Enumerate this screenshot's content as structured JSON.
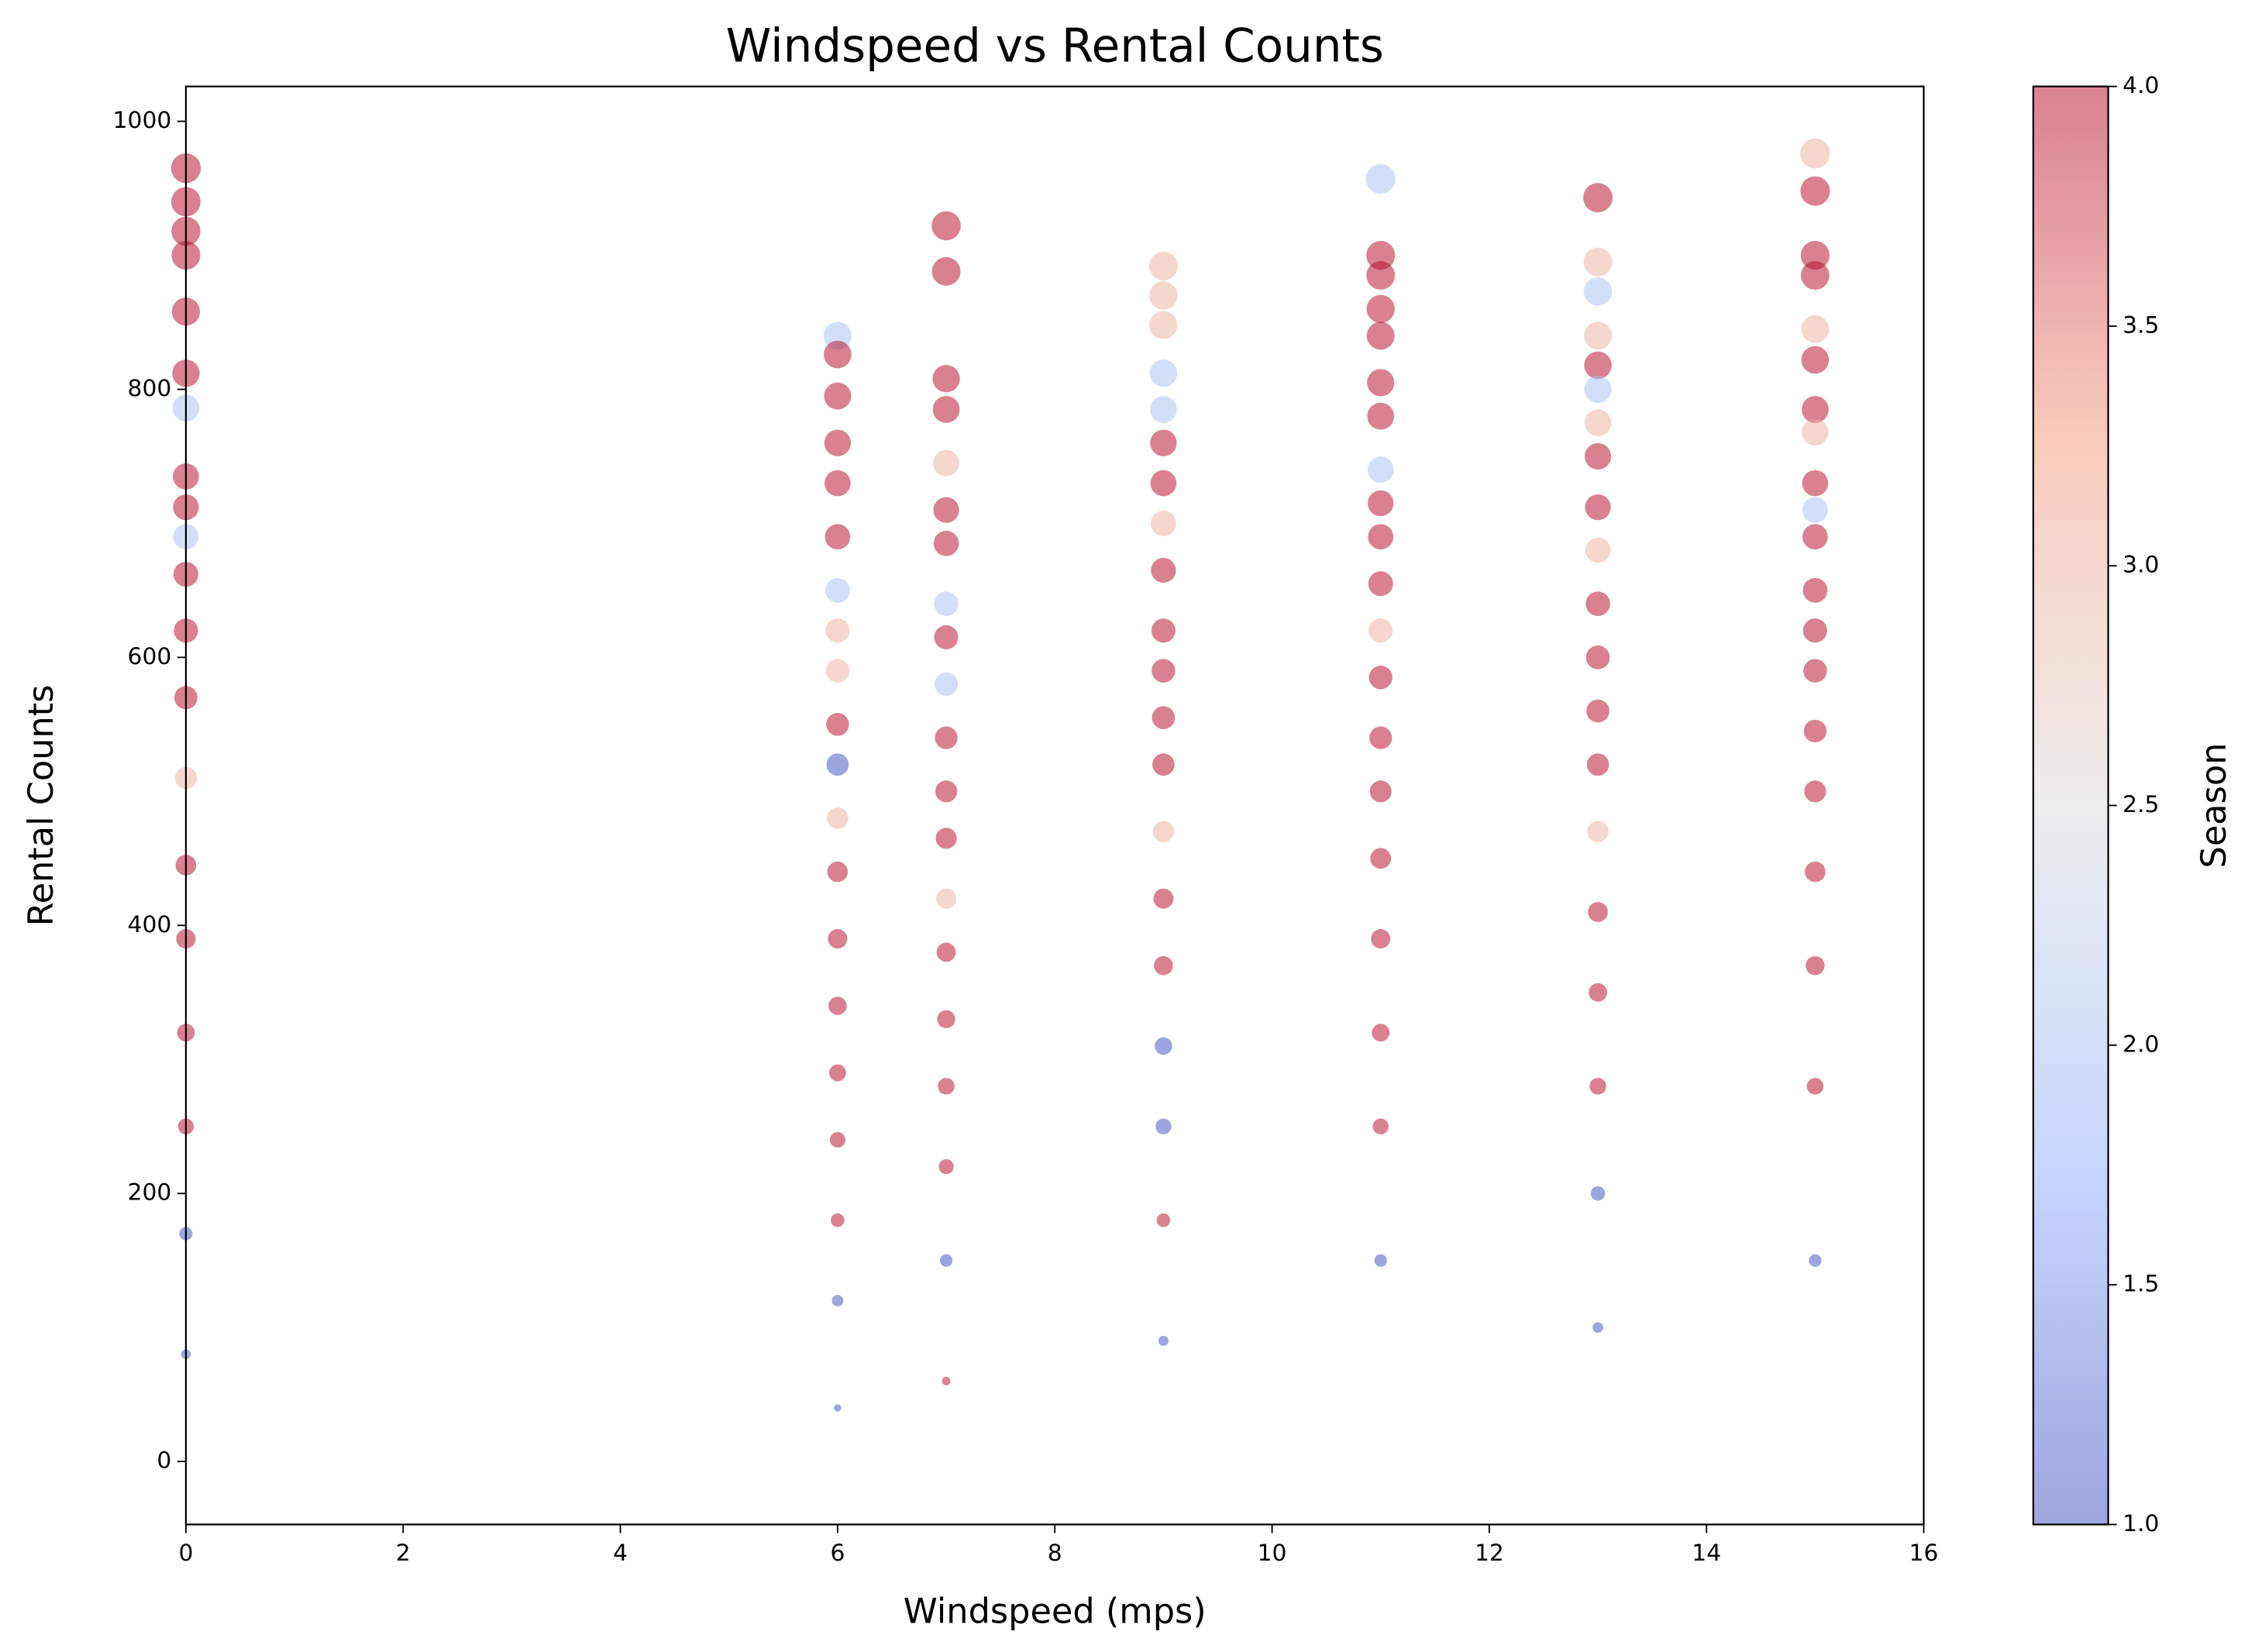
{
  "chart_data": {
    "type": "scatter",
    "title": "Windspeed vs Rental Counts",
    "x_label": "Windspeed (mps)",
    "y_label": "Rental Counts",
    "colorbar_label": "Season",
    "xlim": [
      0,
      16
    ],
    "xticks": [
      0,
      2,
      4,
      6,
      8,
      10,
      12,
      14,
      16
    ],
    "ylim": [
      -47,
      1026
    ],
    "yticks": [
      0,
      200,
      400,
      600,
      800,
      1000
    ],
    "clim": [
      1,
      4
    ],
    "cticks": [
      {
        "value": 1,
        "label": "1.0"
      },
      {
        "value": 1.5,
        "label": "1.5"
      },
      {
        "value": 2,
        "label": "2.0"
      },
      {
        "value": 2.5,
        "label": "2.5"
      },
      {
        "value": 3,
        "label": "3.0"
      },
      {
        "value": 3.5,
        "label": "3.5"
      },
      {
        "value": 4,
        "label": "4.0"
      }
    ],
    "colormap": [
      "#3b4cc0",
      "#8db0fe",
      "#dddddd",
      "#f49a7b",
      "#b40426"
    ],
    "alpha": 0.5,
    "x": [
      0,
      0,
      0,
      0,
      0,
      0,
      0,
      0,
      0,
      0,
      0,
      0,
      0,
      0,
      0,
      0,
      0,
      0,
      0,
      0,
      6,
      6,
      6,
      6,
      6,
      6,
      6,
      6,
      6,
      6,
      6,
      6,
      6,
      6,
      6,
      6,
      6,
      6,
      6,
      6,
      7,
      7,
      7,
      7,
      7,
      7,
      7,
      7,
      7,
      7,
      7,
      7,
      7,
      7,
      7,
      7,
      7,
      7,
      7,
      7,
      9,
      9,
      9,
      9,
      9,
      9,
      9,
      9,
      9,
      9,
      9,
      9,
      9,
      9,
      9,
      9,
      9,
      9,
      9,
      9,
      11,
      11,
      11,
      11,
      11,
      11,
      11,
      11,
      11,
      11,
      11,
      11,
      11,
      11,
      11,
      11,
      11,
      11,
      11,
      11,
      13,
      13,
      13,
      13,
      13,
      13,
      13,
      13,
      13,
      13,
      13,
      13,
      13,
      13,
      13,
      13,
      13,
      13,
      13,
      13,
      15,
      15,
      15,
      15,
      15,
      15,
      15,
      15,
      15,
      15,
      15,
      15,
      15,
      15,
      15,
      15,
      15,
      15,
      15,
      15
    ],
    "values": [
      965,
      940,
      918,
      900,
      858,
      812,
      786,
      735,
      712,
      690,
      662,
      620,
      570,
      510,
      445,
      390,
      320,
      250,
      170,
      80,
      840,
      826,
      795,
      760,
      730,
      690,
      650,
      620,
      590,
      550,
      520,
      480,
      440,
      390,
      340,
      290,
      240,
      180,
      120,
      40,
      922,
      888,
      808,
      785,
      745,
      710,
      685,
      640,
      615,
      580,
      540,
      500,
      465,
      420,
      380,
      330,
      280,
      220,
      150,
      60,
      892,
      870,
      848,
      812,
      785,
      760,
      730,
      700,
      665,
      620,
      590,
      555,
      520,
      470,
      420,
      370,
      310,
      250,
      180,
      90,
      957,
      900,
      885,
      860,
      840,
      805,
      780,
      740,
      715,
      690,
      655,
      620,
      585,
      540,
      500,
      450,
      390,
      320,
      250,
      150,
      943,
      895,
      873,
      840,
      818,
      800,
      775,
      750,
      712,
      680,
      640,
      600,
      560,
      520,
      470,
      410,
      350,
      280,
      200,
      100,
      976,
      948,
      900,
      885,
      845,
      822,
      785,
      768,
      730,
      710,
      690,
      650,
      620,
      590,
      545,
      500,
      440,
      370,
      280,
      150
    ],
    "season": [
      4,
      4,
      4,
      4,
      4,
      4,
      2,
      4,
      4,
      2,
      4,
      4,
      4,
      3,
      4,
      4,
      4,
      4,
      1,
      1,
      2,
      4,
      4,
      4,
      4,
      4,
      2,
      3,
      3,
      4,
      1,
      3,
      4,
      4,
      4,
      4,
      4,
      4,
      1,
      1,
      4,
      4,
      4,
      4,
      3,
      4,
      4,
      2,
      4,
      2,
      4,
      4,
      4,
      3,
      4,
      4,
      4,
      4,
      1,
      4,
      3,
      3,
      3,
      2,
      2,
      4,
      4,
      3,
      4,
      4,
      4,
      4,
      4,
      3,
      4,
      4,
      1,
      1,
      4,
      1,
      2,
      4,
      4,
      4,
      4,
      4,
      4,
      2,
      4,
      4,
      4,
      3,
      4,
      4,
      4,
      4,
      4,
      4,
      4,
      1,
      4,
      3,
      2,
      3,
      4,
      2,
      3,
      4,
      4,
      3,
      4,
      4,
      4,
      4,
      3,
      4,
      4,
      4,
      1,
      1,
      3,
      4,
      4,
      4,
      3,
      4,
      4,
      3,
      4,
      2,
      4,
      4,
      4,
      4,
      4,
      4,
      4,
      4,
      4,
      1
    ]
  }
}
